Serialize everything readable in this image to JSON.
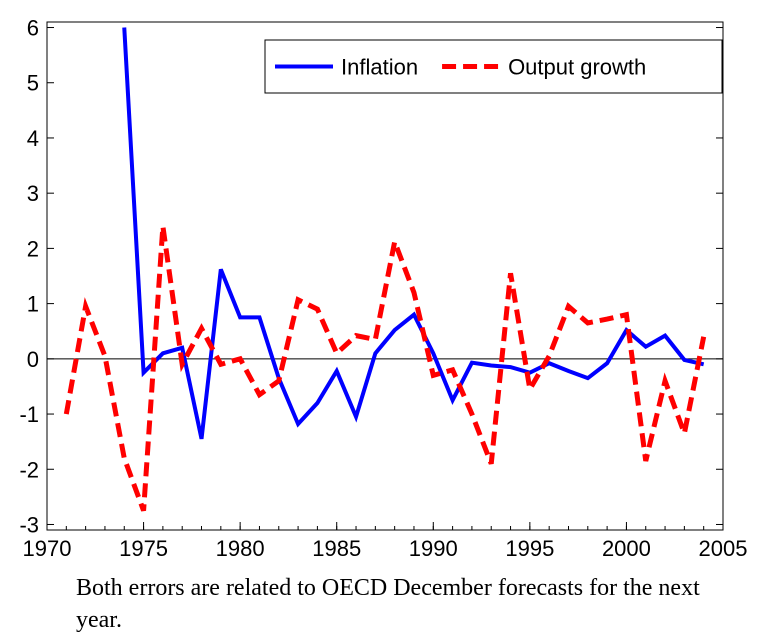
{
  "chart_data": {
    "type": "line",
    "x": [
      1971,
      1972,
      1973,
      1974,
      1975,
      1976,
      1977,
      1978,
      1979,
      1980,
      1981,
      1982,
      1983,
      1984,
      1985,
      1986,
      1987,
      1988,
      1989,
      1990,
      1991,
      1992,
      1993,
      1994,
      1995,
      1996,
      1997,
      1998,
      1999,
      2000,
      2001,
      2002,
      2003,
      2004
    ],
    "series": [
      {
        "name": "Inflation",
        "color": "#0000ff",
        "dash": false,
        "values": [
          null,
          null,
          null,
          6.0,
          -0.25,
          0.1,
          0.2,
          -1.45,
          1.62,
          0.75,
          0.75,
          -0.35,
          -1.18,
          -0.8,
          -0.22,
          -1.05,
          0.1,
          0.52,
          0.8,
          0.1,
          -0.75,
          -0.07,
          -0.12,
          -0.15,
          -0.25,
          -0.08,
          -0.22,
          -0.35,
          -0.08,
          0.52,
          0.22,
          0.42,
          -0.02,
          -0.1
        ]
      },
      {
        "name": "Output growth",
        "color": "#ff0000",
        "dash": true,
        "values": [
          -1.0,
          0.95,
          0.05,
          -1.8,
          -2.75,
          2.4,
          -0.1,
          0.55,
          -0.1,
          0.0,
          -0.65,
          -0.4,
          1.07,
          0.9,
          0.1,
          0.42,
          0.35,
          2.12,
          1.2,
          -0.3,
          -0.2,
          -1.0,
          -1.9,
          1.55,
          -0.55,
          0.05,
          0.95,
          0.65,
          0.72,
          0.8,
          -1.85,
          -0.4,
          -1.35,
          0.4
        ]
      }
    ],
    "xlim": [
      1970,
      2005
    ],
    "xticks": [
      1970,
      1975,
      1980,
      1985,
      1990,
      1995,
      2000,
      2005
    ],
    "ylim": [
      -3.1,
      6.1
    ],
    "yticks": [
      -3,
      -2,
      -1,
      0,
      1,
      2,
      3,
      4,
      5,
      6
    ],
    "legend": "upper right",
    "zero_line": true,
    "note": "Both errors are related to OECD December forecasts for the next year."
  }
}
